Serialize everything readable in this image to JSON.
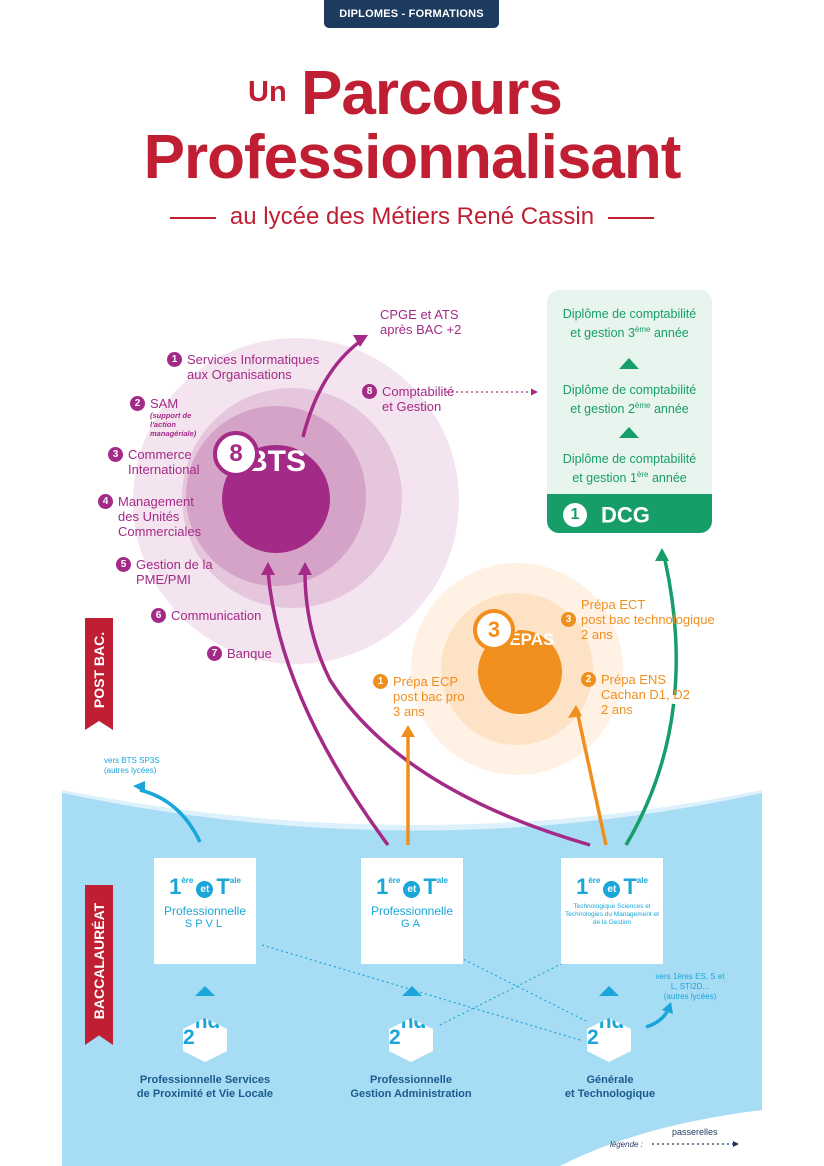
{
  "header": {
    "tag": "DIPLOMES - FORMATIONS"
  },
  "title": {
    "un": "Un",
    "line1": "Parcours",
    "line2": "Professionnalisant",
    "subtitle": "au lycée des Métiers René Cassin"
  },
  "colors": {
    "red": "#c01f33",
    "purple": "#a32a86",
    "orange": "#f08f1e",
    "green": "#179e68",
    "blue": "#1aa6d8",
    "navy": "#1d5a8e"
  },
  "bts": {
    "count": "8",
    "label": "BTS",
    "items": [
      {
        "num": "1",
        "label": "Services Informatiques aux Organisations"
      },
      {
        "num": "2",
        "label": "SAM",
        "note": "(support de l'action managériale)"
      },
      {
        "num": "3",
        "label": "Commerce International"
      },
      {
        "num": "4",
        "label": "Management des Unités Commerciales"
      },
      {
        "num": "5",
        "label": "Gestion de la PME/PMI"
      },
      {
        "num": "6",
        "label": "Communication"
      },
      {
        "num": "7",
        "label": "Banque"
      },
      {
        "num": "8",
        "label": "Comptabilité et Gestion"
      }
    ],
    "cpge": "CPGE et ATS",
    "cpge2": "après BAC +2"
  },
  "dcg": {
    "levels": [
      {
        "line1": "Diplôme de comptabilité",
        "line2": "et gestion 3",
        "sup": "ème",
        "tail": " année"
      },
      {
        "line1": "Diplôme de comptabilité",
        "line2": "et gestion 2",
        "sup": "ème",
        "tail": " année"
      },
      {
        "line1": "Diplôme de comptabilité",
        "line2": "et gestion 1",
        "sup": "ère",
        "tail": " année"
      }
    ],
    "count": "1",
    "label": "DCG"
  },
  "prepas": {
    "count": "3",
    "label": "PRÉPAS",
    "items": [
      {
        "num": "1",
        "l1": "Prépa ECP",
        "l2": "post bac pro",
        "l3": "3 ans"
      },
      {
        "num": "2",
        "l1": "Prépa ENS",
        "l2": "Cachan D1, D2",
        "l3": "2 ans"
      },
      {
        "num": "3",
        "l1": "Prépa ECT",
        "l2": "post bac technologique",
        "l3": "2 ans"
      }
    ]
  },
  "sides": {
    "postbac": "POST BAC.",
    "bac": "BACCALAURÉAT"
  },
  "terminale": {
    "first": "1",
    "first_sup": "ère",
    "et": "et",
    "second": "T",
    "second_sup": "ale"
  },
  "cards": [
    {
      "label": "Professionnelle",
      "code": "SPVL"
    },
    {
      "label": "Professionnelle",
      "code": "GA"
    },
    {
      "tiny": "Technologique Sciences et Technologies du Management et de la Gestion"
    }
  ],
  "seconde": {
    "num": "2",
    "sup": "nde"
  },
  "captions": [
    {
      "l1": "Professionnelle Services",
      "l2": "de Proximité et Vie Locale"
    },
    {
      "l1": "Professionnelle",
      "l2": "Gestion Administration"
    },
    {
      "l1": "Générale",
      "l2": "et Technologique"
    }
  ],
  "notes": {
    "left1": "vers BTS SP3S",
    "left2": "(autres lycées)",
    "right1": "vers 1ères ES, S et",
    "right2": "L, STI2D...",
    "right3": "(autres lycées)"
  },
  "legend": {
    "label": "légende :",
    "item": "passerelles"
  }
}
